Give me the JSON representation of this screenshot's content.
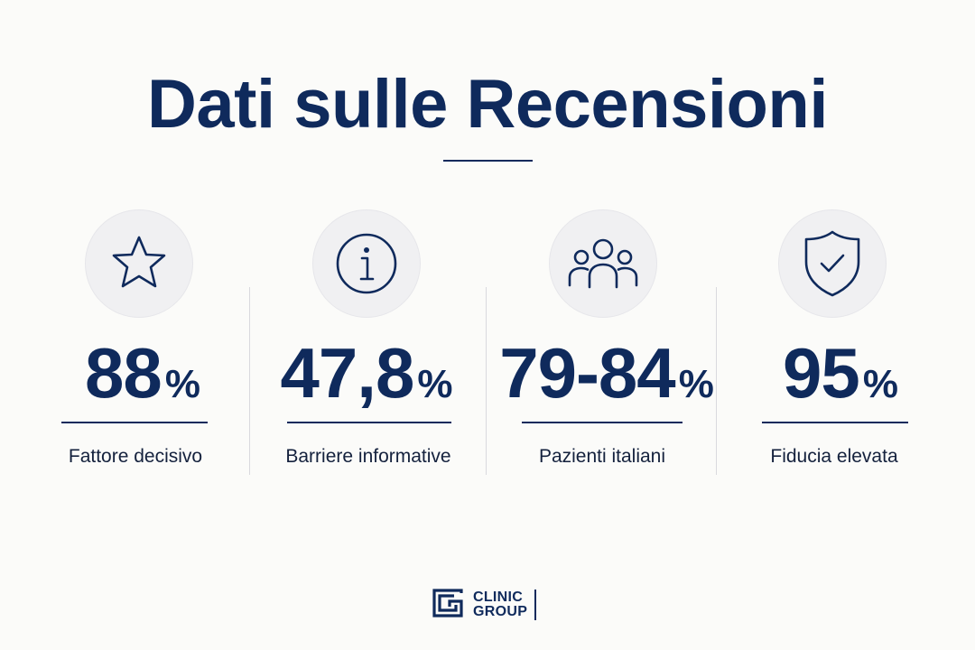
{
  "header": {
    "title": "Dati sulle Recensioni"
  },
  "stats": [
    {
      "value": "88",
      "unit": "%",
      "label": "Fattore decisivo",
      "icon": "star-icon"
    },
    {
      "value": "47,8",
      "unit": "%",
      "label": "Barriere informative",
      "icon": "info-icon"
    },
    {
      "value": "79-84",
      "unit": "%",
      "label": "Pazienti italiani",
      "icon": "users-icon"
    },
    {
      "value": "95",
      "unit": "%",
      "label": "Fiducia elevata",
      "icon": "shield-check-icon"
    }
  ],
  "footer": {
    "logo_line1": "CLINIC",
    "logo_line2": "GROUP"
  },
  "colors": {
    "primary": "#0f2a5c",
    "background": "#fbfbf9",
    "icon_circle": "#f0f0f2",
    "divider": "#d9d9de"
  }
}
